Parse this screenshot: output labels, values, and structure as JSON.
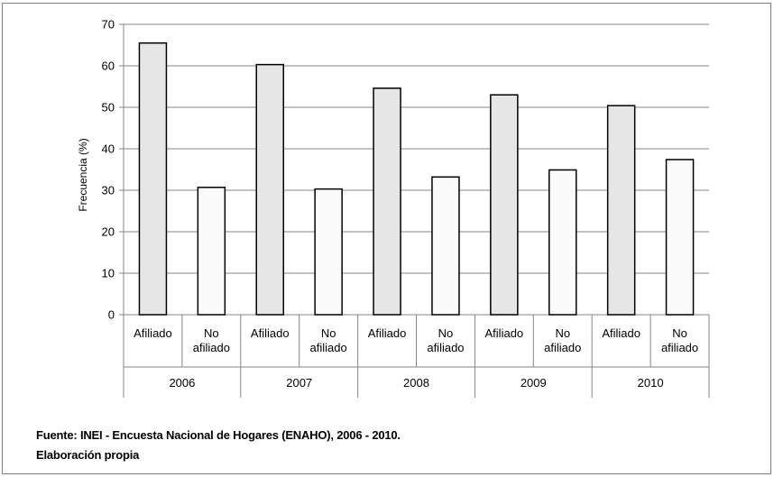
{
  "chart_data": {
    "type": "bar",
    "ylabel": "Frecuencia (%)",
    "ylim": [
      0,
      70
    ],
    "yticks": [
      "0",
      "10",
      "20",
      "30",
      "40",
      "50",
      "60",
      "70"
    ],
    "grid": true,
    "groups": [
      "2006",
      "2007",
      "2008",
      "2009",
      "2010"
    ],
    "categories": [
      [
        "Afiliado"
      ],
      [
        "No",
        "afiliado"
      ]
    ],
    "values": [
      [
        65.5,
        30.7
      ],
      [
        60.3,
        30.3
      ],
      [
        54.6,
        33.2
      ],
      [
        53.0,
        34.9
      ],
      [
        50.4,
        37.4
      ]
    ],
    "colors": {
      "afiliado": "#e6e6e6",
      "no_afiliado": "#fafafa",
      "bar_stroke": "#000000",
      "grid": "#868686",
      "axis": "#868686"
    }
  },
  "footer": {
    "source": "Fuente: INEI - Encuesta Nacional de Hogares (ENAHO), 2006 - 2010.",
    "note": "Elaboración  propia"
  }
}
